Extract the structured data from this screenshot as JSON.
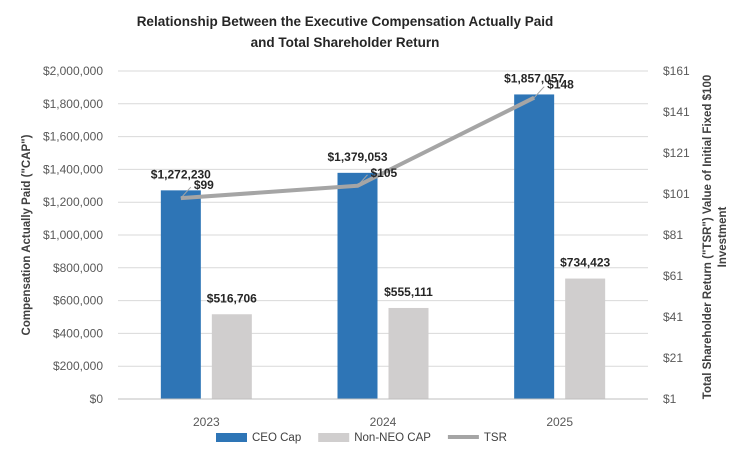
{
  "chart_data": {
    "type": "bar",
    "title_line1": "Relationship Between the Executive Compensation Actually Paid",
    "title_line2": "and Total Shareholder Return",
    "categories": [
      "2023",
      "2024",
      "2025"
    ],
    "series": [
      {
        "name": "CEO Cap",
        "type": "bar",
        "axis": "left",
        "color": "#2e75b6",
        "values": [
          1272230,
          1379053,
          1857057
        ],
        "labels": [
          "$1,272,230",
          "$1,379,053",
          "$1,857,057"
        ]
      },
      {
        "name": "Non-NEO CAP",
        "type": "bar",
        "axis": "left",
        "color": "#d0cece",
        "values": [
          516706,
          555111,
          734423
        ],
        "labels": [
          "$516,706",
          "$555,111",
          "$734,423"
        ]
      },
      {
        "name": "TSR",
        "type": "line",
        "axis": "right",
        "color": "#a5a5a5",
        "values": [
          99,
          105,
          148
        ],
        "labels": [
          "$99",
          "$105",
          "$148"
        ]
      }
    ],
    "ylabel": "Compensation Actually Paid (\"CAP\")",
    "y2label_line1": "Total Shareholder Return (\"TSR\") Value of Initial Fixed $100",
    "y2label_line2": "Investment",
    "ylim": [
      0,
      2000000
    ],
    "y2lim": [
      1,
      161
    ],
    "yticks": [
      0,
      200000,
      400000,
      600000,
      800000,
      1000000,
      1200000,
      1400000,
      1600000,
      1800000,
      2000000
    ],
    "ytick_labels": [
      "$0",
      "$200,000",
      "$400,000",
      "$600,000",
      "$800,000",
      "$1,000,000",
      "$1,200,000",
      "$1,400,000",
      "$1,600,000",
      "$1,800,000",
      "$2,000,000"
    ],
    "y2ticks": [
      1,
      21,
      41,
      61,
      81,
      101,
      121,
      141,
      161
    ],
    "y2tick_labels": [
      "$1",
      "$21",
      "$41",
      "$61",
      "$81",
      "$101",
      "$121",
      "$141",
      "$161"
    ],
    "grid": true,
    "legend_position": "bottom"
  }
}
